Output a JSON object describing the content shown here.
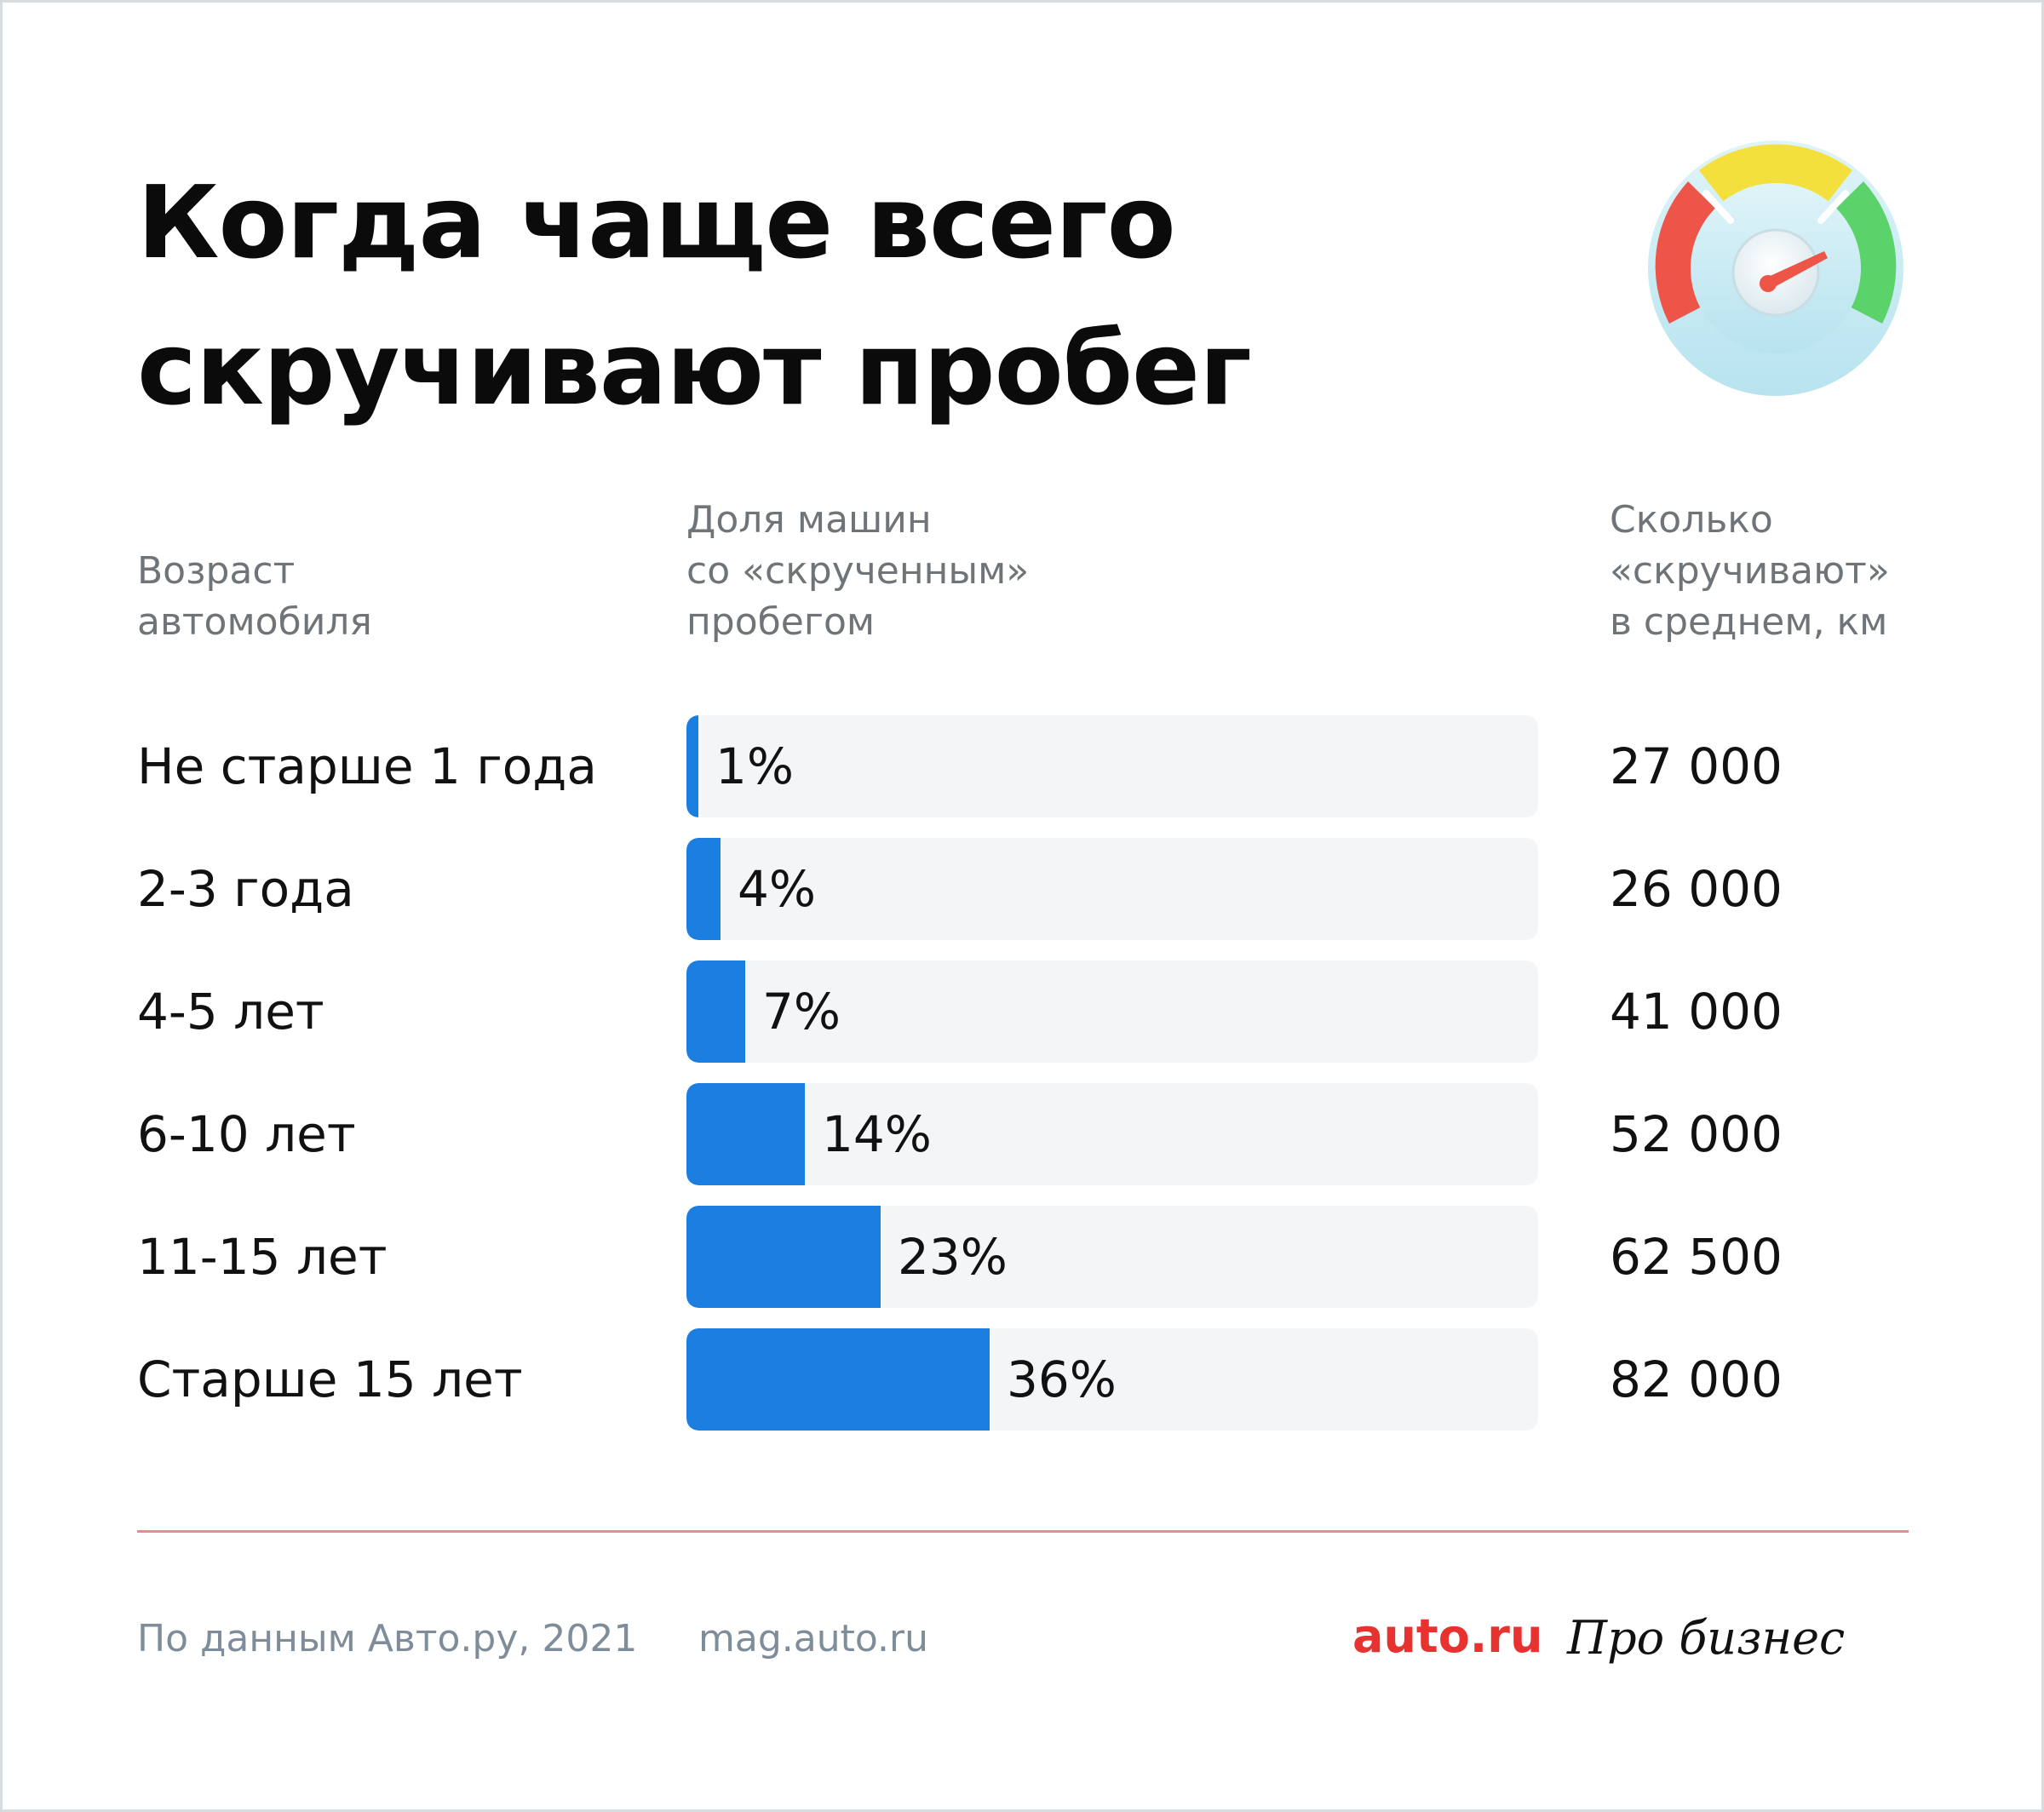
{
  "title": {
    "line1": "Когда чаще всего",
    "line2": "скручивают пробег"
  },
  "headers": {
    "age": [
      "Возраст",
      "автомобиля"
    ],
    "share": [
      "Доля машин",
      "со «скрученным»",
      "пробегом"
    ],
    "km": [
      "Сколько",
      "«скручивают»",
      "в среднем, км"
    ]
  },
  "rows": [
    {
      "label": "Не старше 1 года",
      "share_label": "1%",
      "km": "27 000"
    },
    {
      "label": "2-3 года",
      "share_label": "4%",
      "km": "26 000"
    },
    {
      "label": "4-5 лет",
      "share_label": "7%",
      "km": "41 000"
    },
    {
      "label": "6-10 лет",
      "share_label": "14%",
      "km": "52 000"
    },
    {
      "label": "11-15 лет",
      "share_label": "23%",
      "km": "62 500"
    },
    {
      "label": "Старше 15 лет",
      "share_label": "36%",
      "km": "82 000"
    }
  ],
  "chart_data": {
    "type": "bar",
    "orientation": "horizontal",
    "categories": [
      "Не старше 1 года",
      "2-3 года",
      "4-5 лет",
      "6-10 лет",
      "11-15 лет",
      "Старше 15 лет"
    ],
    "values": [
      1,
      4,
      7,
      14,
      23,
      36
    ],
    "value_unit": "%",
    "secondary_values": [
      27000,
      26000,
      41000,
      52000,
      62500,
      82000
    ],
    "xlim": [
      0,
      100
    ],
    "grid": false,
    "bar_color": "#1a7fe0",
    "track_color": "#f4f5f7"
  },
  "footer": {
    "source": "По данным Авто.ру, 2021",
    "url": "mag.auto.ru",
    "logo_auto": "auto.ru",
    "logo_pro": "Про бизнес"
  },
  "colors": {
    "accent": "#1a7fe0",
    "brand_red": "#e8322f",
    "divider": "#e98a8f",
    "muted_text": "#6f7479"
  },
  "icons": {
    "gauge": "speedometer-icon"
  }
}
